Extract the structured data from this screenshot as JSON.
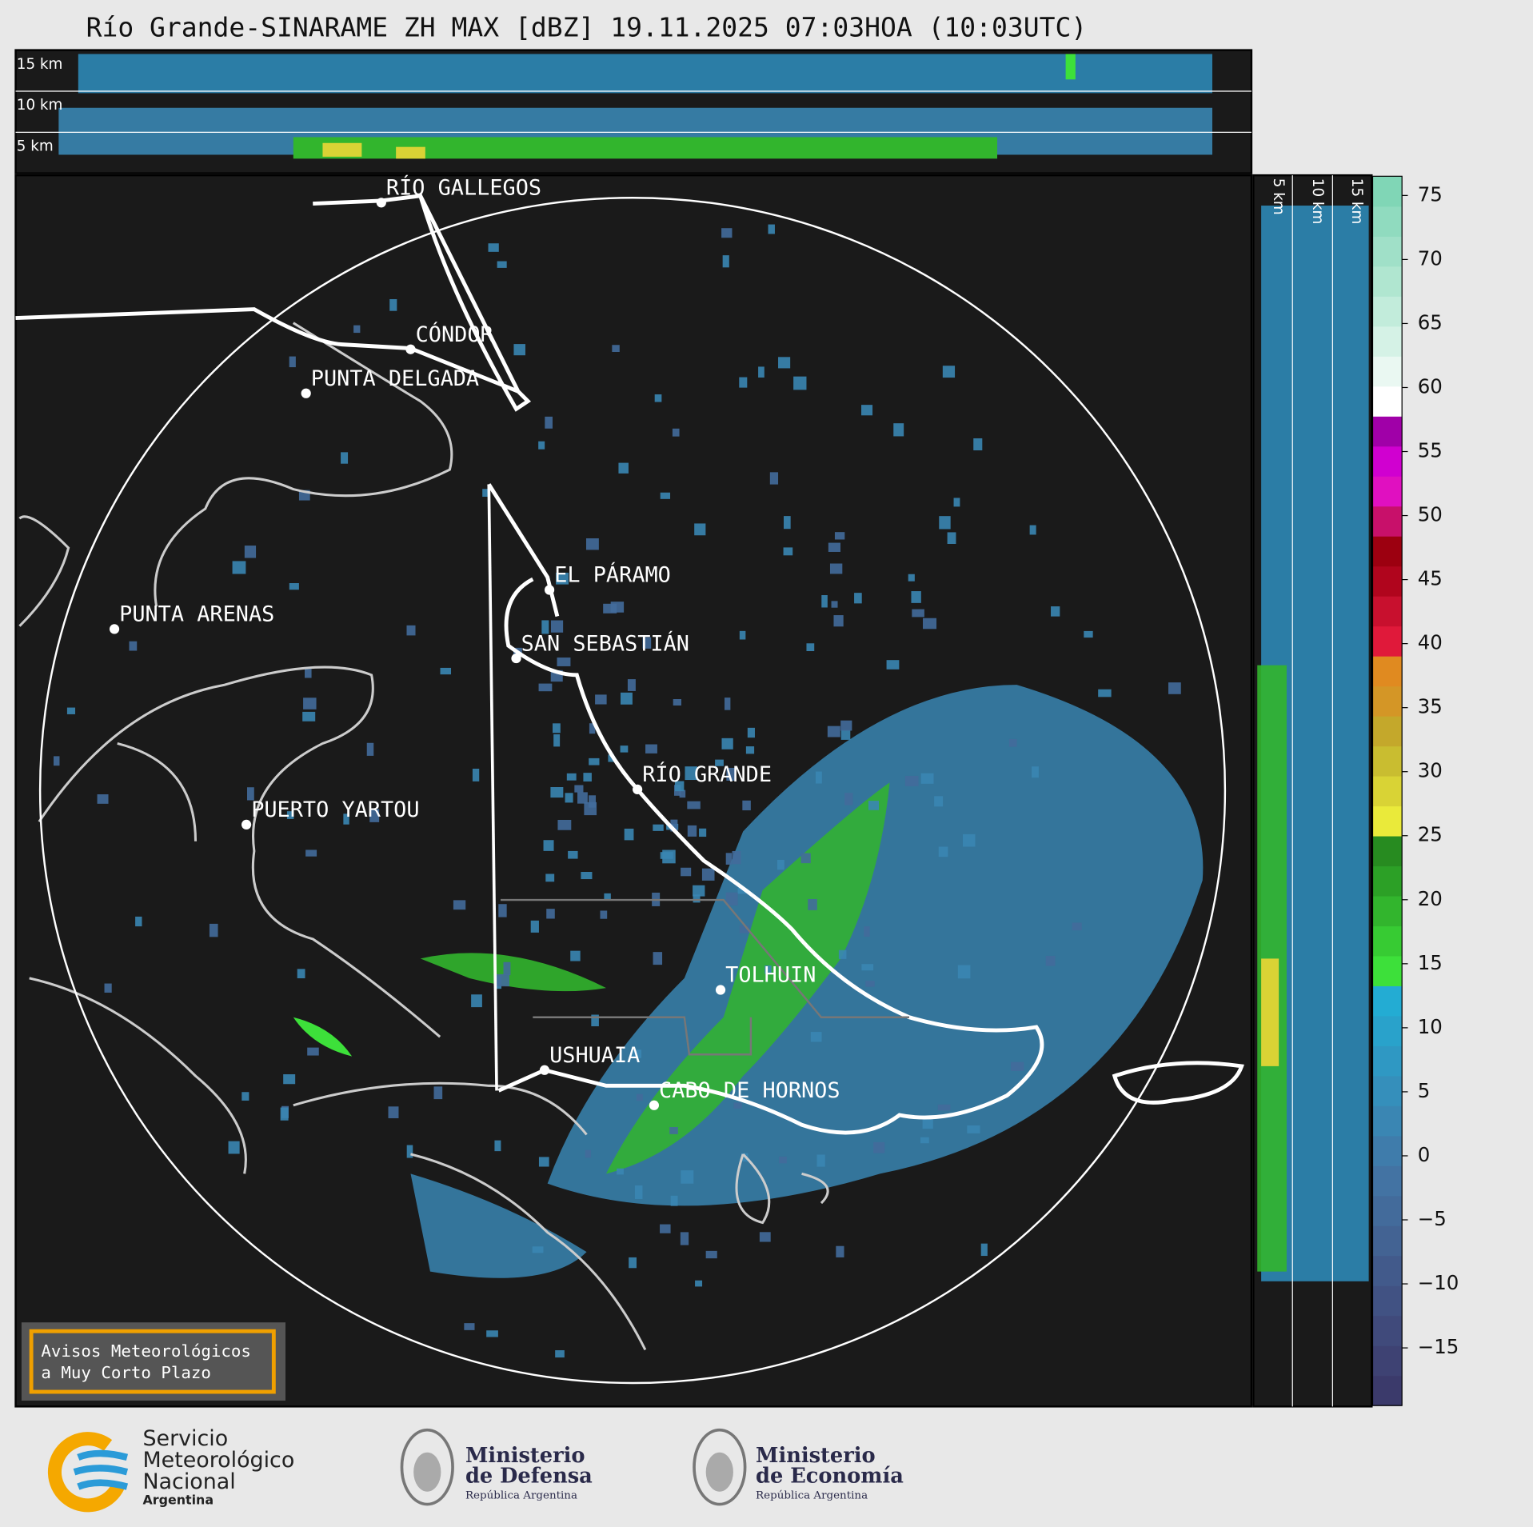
{
  "title": "Río Grande-SINARAME ZH MAX [dBZ] 19.11.2025 07:03HOA (10:03UTC)",
  "top_section": {
    "height_labels": [
      "15 km",
      "10 km",
      "5 km"
    ]
  },
  "side_section": {
    "height_labels": [
      "5 km",
      "10 km",
      "15 km"
    ]
  },
  "map": {
    "places": [
      "RÍO GALLEGOS",
      "CÓNDOR",
      "PUNTA DELGADA",
      "EL PÁRAMO",
      "PUNTA ARENAS",
      "SAN SEBASTIÁN",
      "RÍO GRANDE",
      "PUERTO YARTOU",
      "TOLHUIN",
      "USHUAIA",
      "CABO DE HORNOS"
    ]
  },
  "colorbar": {
    "lim": [
      -19.5,
      76.5
    ],
    "ticks": [
      75,
      70,
      65,
      60,
      55,
      50,
      45,
      40,
      35,
      30,
      25,
      20,
      15,
      10,
      5,
      0,
      {
        "value": -5,
        "label": "−5"
      },
      {
        "value": -10,
        "label": "−10"
      },
      {
        "value": -15,
        "label": "−15"
      }
    ],
    "colors": [
      "#3b3a6b",
      "#3e4273",
      "#404a7b",
      "#415283",
      "#425a8b",
      "#436393",
      "#436b9b",
      "#4373a3",
      "#3f7cab",
      "#3a86b3",
      "#358fbb",
      "#2f98c3",
      "#29a2cb",
      "#23acd3",
      "#3de03a",
      "#37cb33",
      "#32b52d",
      "#2ca026",
      "#278b20",
      "#eaea3a",
      "#d9d335",
      "#c9bd30",
      "#c4a82b",
      "#d49626",
      "#e08a20",
      "#e0193a",
      "#c8102e",
      "#b0051d",
      "#9c0010",
      "#c8106a",
      "#e010c0",
      "#d000d0",
      "#a000a8",
      "#ffffff",
      "#eaf8f2",
      "#d5f2e6",
      "#c2ecdb",
      "#b0e6d0",
      "#a0e0c8",
      "#90dbbf",
      "#80d6b6"
    ]
  },
  "notice": {
    "lines": [
      "Avisos Meteorológicos",
      "a Muy Corto Plazo"
    ]
  },
  "logos": {
    "smn": [
      "Servicio",
      "Meteorológico",
      "Nacional",
      "Argentina"
    ],
    "defensa": [
      "Ministerio",
      "de Defensa",
      "República Argentina"
    ],
    "economia": [
      "Ministerio",
      "de Economía",
      "República Argentina"
    ]
  }
}
